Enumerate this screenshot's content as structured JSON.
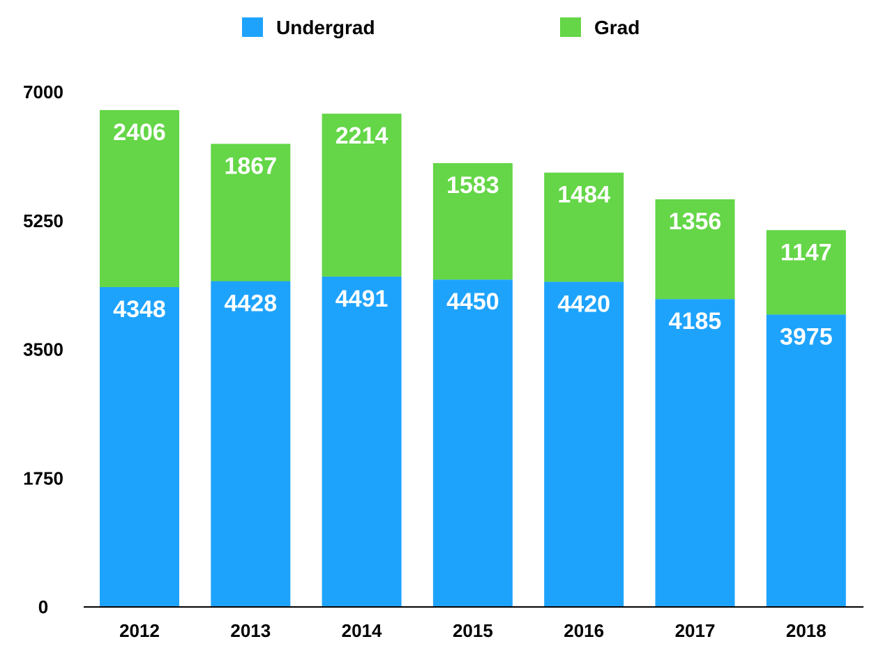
{
  "chart_data": {
    "type": "bar",
    "stacked": true,
    "categories": [
      "2012",
      "2013",
      "2014",
      "2015",
      "2016",
      "2017",
      "2018"
    ],
    "series": [
      {
        "name": "Undergrad",
        "color": "#1ea3fd",
        "values": [
          4348,
          4428,
          4491,
          4450,
          4420,
          4185,
          3975
        ]
      },
      {
        "name": "Grad",
        "color": "#64d647",
        "values": [
          2406,
          1867,
          2214,
          1583,
          1484,
          1356,
          1147
        ]
      }
    ],
    "yticks": [
      "0",
      "1750",
      "3500",
      "5250",
      "7000"
    ],
    "ylim": [
      0,
      7000
    ],
    "grid": false,
    "legend_position": "top-center",
    "title": "",
    "xlabel": "",
    "ylabel": ""
  }
}
